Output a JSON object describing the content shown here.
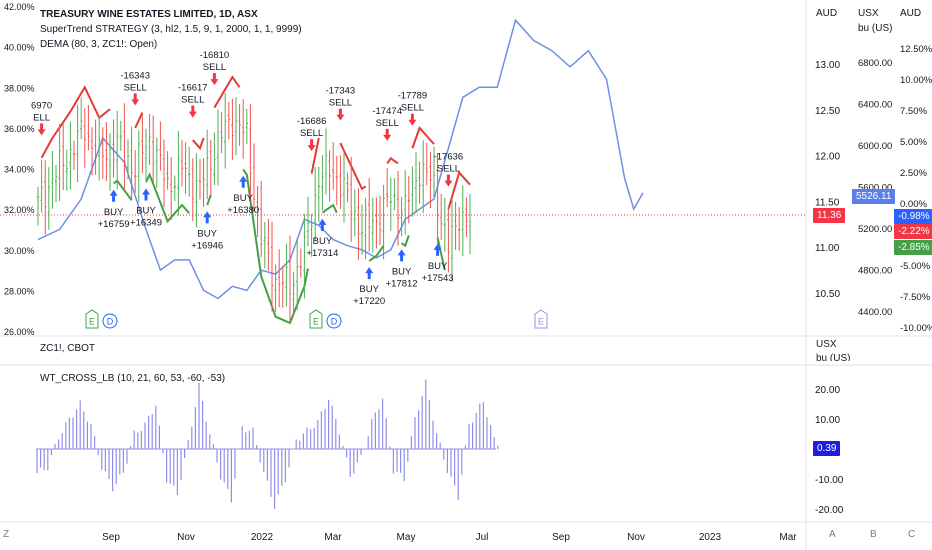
{
  "legend": {
    "line1": "TREASURY WINE ESTATES LIMITED, 1D, ASX",
    "line2": "SuperTrend STRATEGY (3, hl2, 1.5, 9, 1, 2000, 1, 1, 9999)",
    "line3": "DEMA (80, 3, ZC1!: Open)",
    "line4": "ZC1!, CBOT",
    "line5": "WT_CROSS_LB (10, 21, 60, 53, -60, -53)"
  },
  "axis_headers": {
    "aud_mid": "AUD",
    "usx": "USX",
    "bu_us": "bu (US)",
    "aud_right": "AUD",
    "usx_lower": "USX",
    "bu_us_lower": "bu (US)"
  },
  "tags": {
    "price_aud": "11.36",
    "price_usx": "5526.11",
    "pct1": "-0.98%",
    "pct2": "-2.22%",
    "pct3": "-2.85%",
    "wt": "0.39"
  },
  "bottom_buttons": [
    "Z",
    "A",
    "B",
    "C"
  ],
  "event_markers": [
    "E",
    "D",
    "E",
    "D",
    "E"
  ],
  "colors": {
    "up": "#4caf50",
    "down": "#ef5350",
    "zc_line": "#6f8fe8",
    "wt_bars": "#8f8fe8",
    "buy_arrow": "#2962ff",
    "sell_arrow": "#f23645",
    "supertrend_up": "#43a047",
    "supertrend_down": "#e53935"
  },
  "chart_data": [
    {
      "type": "candlestick",
      "title": "TREASURY WINE ESTATES LIMITED, 1D, ASX",
      "y_axis_left_ticks": [
        "42.00%",
        "40.00%",
        "38.00%",
        "36.00%",
        "34.00%",
        "32.00%",
        "30.00%",
        "28.00%",
        "26.00%"
      ],
      "y_axis_aud_ticks": [
        "13.00",
        "12.50",
        "12.00",
        "11.50",
        "11.00",
        "10.50"
      ],
      "y_axis_usx_ticks": [
        "6800.00",
        "6400.00",
        "6000.00",
        "5600.00",
        "5200.00",
        "4800.00",
        "4400.00"
      ],
      "y_axis_pct_ticks": [
        "12.50%",
        "10.00%",
        "7.50%",
        "5.00%",
        "2.50%",
        "0.00%",
        "-2.50%",
        "-5.00%",
        "-7.50%",
        "-10.00%"
      ],
      "x_tick_labels": [
        "Sep",
        "Nov",
        "2022",
        "Mar",
        "May",
        "Jul",
        "Sep",
        "Nov",
        "2023",
        "Mar"
      ],
      "price_anchors": [
        [
          0,
          32.2
        ],
        [
          4,
          33.5
        ],
        [
          9,
          34.8
        ],
        [
          13,
          36.0
        ],
        [
          17,
          34.5
        ],
        [
          22,
          35.2
        ],
        [
          27,
          34.0
        ],
        [
          31,
          35.5
        ],
        [
          36,
          33.2
        ],
        [
          40,
          34.0
        ],
        [
          45,
          33.0
        ],
        [
          49,
          35.0
        ],
        [
          54,
          36.5
        ],
        [
          58,
          35.5
        ],
        [
          62,
          30.5
        ],
        [
          66,
          28.5
        ],
        [
          70,
          28.2
        ],
        [
          74,
          30.0
        ],
        [
          78,
          33.5
        ],
        [
          82,
          34.0
        ],
        [
          86,
          32.5
        ],
        [
          90,
          31.0
        ],
        [
          94,
          31.5
        ],
        [
          98,
          32.5
        ],
        [
          102,
          32.0
        ],
        [
          106,
          34.0
        ],
        [
          110,
          33.2
        ],
        [
          114,
          30.0
        ],
        [
          117,
          31.8
        ],
        [
          120,
          31.2
        ]
      ],
      "zc1_line": [
        [
          0,
          30.5
        ],
        [
          6,
          31.0
        ],
        [
          12,
          32.5
        ],
        [
          18,
          35.5
        ],
        [
          24,
          34.3
        ],
        [
          30,
          31.0
        ],
        [
          34,
          29.0
        ],
        [
          38,
          29.5
        ],
        [
          42,
          29.5
        ],
        [
          46,
          28.0
        ],
        [
          50,
          27.6
        ],
        [
          54,
          28.2
        ],
        [
          58,
          28.0
        ],
        [
          62,
          29.0
        ],
        [
          66,
          28.8
        ],
        [
          70,
          29.5
        ],
        [
          74,
          31.5
        ],
        [
          78,
          31.2
        ],
        [
          82,
          30.5
        ],
        [
          86,
          30.2
        ],
        [
          90,
          30.0
        ],
        [
          94,
          29.6
        ],
        [
          98,
          30.0
        ],
        [
          102,
          31.5
        ],
        [
          106,
          32.0
        ],
        [
          110,
          32.5
        ],
        [
          114,
          35.0
        ],
        [
          118,
          37.5
        ],
        [
          122,
          38.0
        ],
        [
          126,
          38.0
        ],
        [
          130,
          41.3
        ],
        [
          134,
          40.3
        ],
        [
          138,
          39.8
        ],
        [
          142,
          39.0
        ],
        [
          146,
          39.8
        ],
        [
          150,
          38.4
        ],
        [
          154,
          33.5
        ],
        [
          156,
          32.0
        ],
        [
          158,
          32.8
        ]
      ],
      "buy_signals": [
        {
          "bar": 21,
          "label": "BUY",
          "value": "+16759"
        },
        {
          "bar": 30,
          "label": "BUY",
          "value": "+16349"
        },
        {
          "bar": 47,
          "label": "BUY",
          "value": "+16946"
        },
        {
          "bar": 57,
          "label": "BUY",
          "value": "+16380"
        },
        {
          "bar": 79,
          "label": "BUY",
          "value": "+17314"
        },
        {
          "bar": 92,
          "label": "BUY",
          "value": "+17220"
        },
        {
          "bar": 101,
          "label": "BUY",
          "value": "+17812"
        },
        {
          "bar": 111,
          "label": "BUY",
          "value": "+17543"
        }
      ],
      "sell_signals": [
        {
          "bar": 1,
          "label": "ELL",
          "value": "6970"
        },
        {
          "bar": 27,
          "label": "SELL",
          "value": "-16343"
        },
        {
          "bar": 43,
          "label": "SELL",
          "value": "-16617"
        },
        {
          "bar": 49,
          "label": "SELL",
          "value": "-16810"
        },
        {
          "bar": 76,
          "label": "SELL",
          "value": "-16686"
        },
        {
          "bar": 84,
          "label": "SELL",
          "value": "-17343"
        },
        {
          "bar": 97,
          "label": "SELL",
          "value": "-17474"
        },
        {
          "bar": 104,
          "label": "SELL",
          "value": "-17789"
        },
        {
          "bar": 114,
          "label": "SELL",
          "value": "-17636"
        }
      ]
    },
    {
      "type": "bar",
      "title": "WT_CROSS_LB (10, 21, 60, 53, -60, -53)",
      "y_axis_ticks": [
        "20.00",
        "10.00",
        "0.00",
        "-10.00",
        "-20.00"
      ],
      "ylim": [
        -22,
        24
      ],
      "anchors": [
        [
          0,
          -8
        ],
        [
          3,
          -6
        ],
        [
          6,
          4
        ],
        [
          9,
          10
        ],
        [
          12,
          15
        ],
        [
          15,
          8
        ],
        [
          18,
          -6
        ],
        [
          21,
          -13
        ],
        [
          24,
          -8
        ],
        [
          27,
          5
        ],
        [
          30,
          8
        ],
        [
          33,
          15
        ],
        [
          36,
          -10
        ],
        [
          39,
          -15
        ],
        [
          42,
          2
        ],
        [
          45,
          21
        ],
        [
          48,
          5
        ],
        [
          51,
          -9
        ],
        [
          54,
          -17
        ],
        [
          57,
          7
        ],
        [
          60,
          6
        ],
        [
          63,
          -8
        ],
        [
          66,
          -19
        ],
        [
          69,
          -10
        ],
        [
          72,
          3
        ],
        [
          75,
          6
        ],
        [
          78,
          9
        ],
        [
          81,
          17
        ],
        [
          84,
          6
        ],
        [
          87,
          -9
        ],
        [
          90,
          -3
        ],
        [
          93,
          9
        ],
        [
          96,
          17
        ],
        [
          99,
          -7
        ],
        [
          102,
          -10
        ],
        [
          105,
          10
        ],
        [
          108,
          22
        ],
        [
          111,
          5
        ],
        [
          114,
          -7
        ],
        [
          117,
          -16
        ],
        [
          120,
          8
        ],
        [
          124,
          16
        ],
        [
          127,
          3
        ],
        [
          130,
          0
        ]
      ]
    }
  ]
}
